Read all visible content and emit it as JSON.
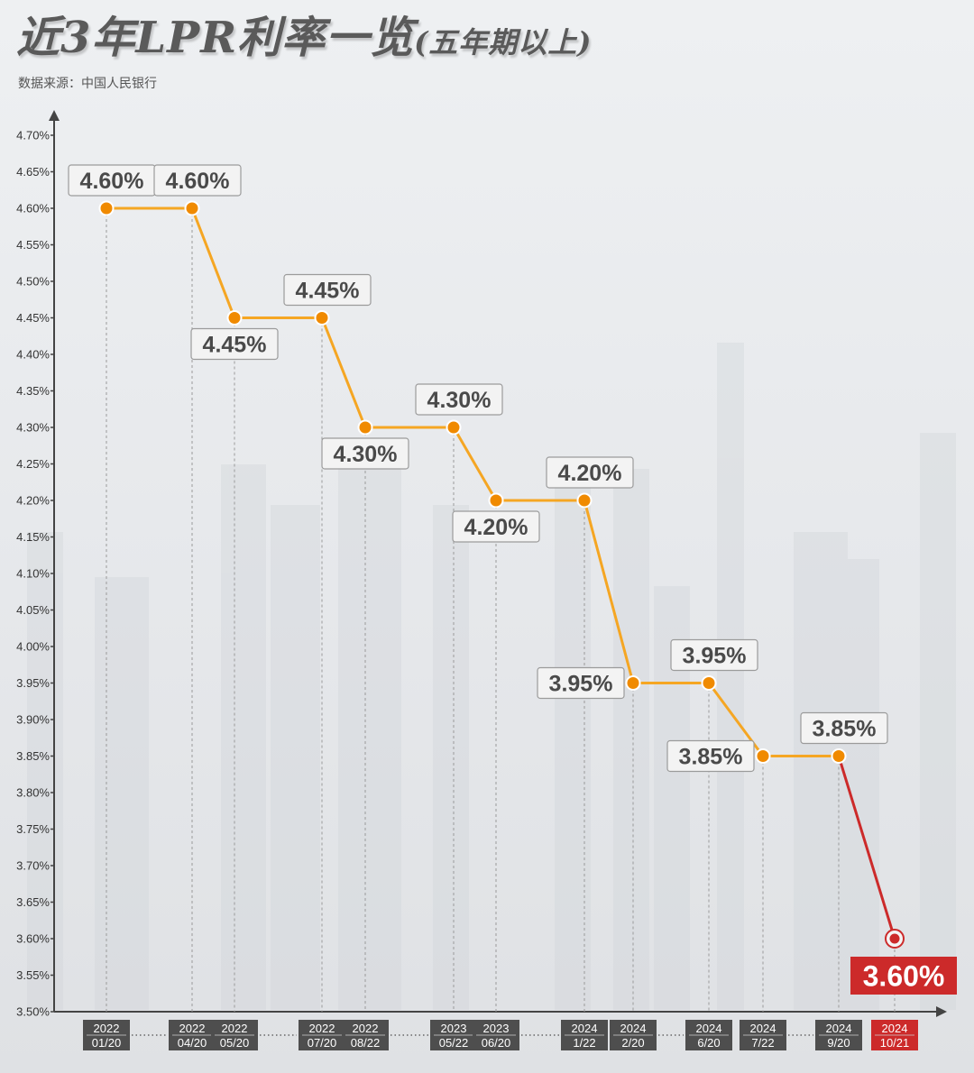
{
  "header": {
    "title_main": "近3年LPR利率一览",
    "title_sub": "(五年期以上)",
    "source": "数据来源：中国人民银行"
  },
  "colors": {
    "line": "#f5a623",
    "marker": "#f08a00",
    "highlight": "#cc2a2a",
    "date_box": "#4e4e4e",
    "label_text": "#4a4a4a"
  },
  "chart_data": {
    "type": "line",
    "title": "近3年LPR利率一览(五年期以上)",
    "xlabel": "",
    "ylabel": "",
    "ylim": [
      3.5,
      4.7
    ],
    "y_ticks": [
      "3.50%",
      "3.55%",
      "3.60%",
      "3.65%",
      "3.70%",
      "3.75%",
      "3.80%",
      "3.85%",
      "3.90%",
      "3.95%",
      "4.00%",
      "4.05%",
      "4.10%",
      "4.15%",
      "4.20%",
      "4.25%",
      "4.30%",
      "4.35%",
      "4.40%",
      "4.45%",
      "4.50%",
      "4.55%",
      "4.60%",
      "4.65%",
      "4.70%"
    ],
    "grid": false,
    "points": [
      {
        "year": "2022",
        "date": "01/20",
        "value": 4.6,
        "label": "4.60%"
      },
      {
        "year": "2022",
        "date": "04/20",
        "value": 4.6,
        "label": "4.60%"
      },
      {
        "year": "2022",
        "date": "05/20",
        "value": 4.45,
        "label": "4.45%"
      },
      {
        "year": "2022",
        "date": "07/20",
        "value": 4.45,
        "label": "4.45%"
      },
      {
        "year": "2022",
        "date": "08/22",
        "value": 4.3,
        "label": "4.30%"
      },
      {
        "year": "2023",
        "date": "05/22",
        "value": 4.3,
        "label": "4.30%"
      },
      {
        "year": "2023",
        "date": "06/20",
        "value": 4.2,
        "label": "4.20%"
      },
      {
        "year": "2024",
        "date": "1/22",
        "value": 4.2,
        "label": "4.20%"
      },
      {
        "year": "2024",
        "date": "2/20",
        "value": 3.95,
        "label": "3.95%"
      },
      {
        "year": "2024",
        "date": "6/20",
        "value": 3.95,
        "label": "3.95%"
      },
      {
        "year": "2024",
        "date": "7/22",
        "value": 3.85,
        "label": "3.85%"
      },
      {
        "year": "2024",
        "date": "9/20",
        "value": 3.85,
        "label": "3.85%"
      },
      {
        "year": "2024",
        "date": "10/21",
        "value": 3.6,
        "label": "3.60%",
        "highlight": true
      }
    ]
  }
}
